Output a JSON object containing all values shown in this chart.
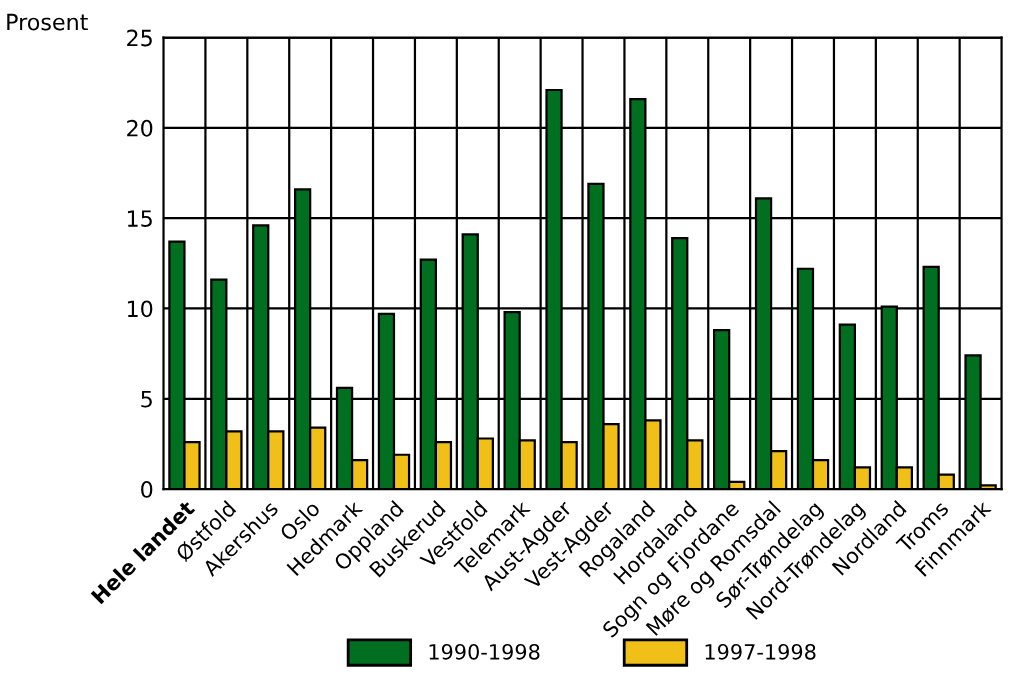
{
  "chart_data": {
    "type": "bar",
    "ylabel": "Prosent",
    "categories": [
      "Hele landet",
      "Østfold",
      "Akershus",
      "Oslo",
      "Hedmark",
      "Oppland",
      "Buskerud",
      "Vestfold",
      "Telemark",
      "Aust-Agder",
      "Vest-Agder",
      "Rogaland",
      "Hordaland",
      "Sogn og Fjordane",
      "Møre og Romsdal",
      "Sør-Trøndelag",
      "Nord-Trøndelag",
      "Nordland",
      "Troms",
      "Finnmark"
    ],
    "series": [
      {
        "name": "1990-1998",
        "color": "#006f1f",
        "values": [
          13.7,
          11.6,
          14.6,
          16.6,
          5.6,
          9.7,
          12.7,
          14.1,
          9.8,
          22.1,
          16.9,
          21.6,
          13.9,
          8.8,
          16.1,
          12.2,
          9.1,
          10.1,
          12.3,
          7.4
        ]
      },
      {
        "name": "1997-1998",
        "color": "#f0c018",
        "values": [
          2.6,
          3.2,
          3.2,
          3.4,
          1.6,
          1.9,
          2.6,
          2.8,
          2.7,
          2.6,
          3.6,
          3.8,
          2.7,
          0.4,
          2.1,
          1.6,
          1.2,
          1.2,
          0.8,
          0.2
        ]
      }
    ],
    "ylim": [
      0,
      25
    ],
    "yticks": [
      0,
      5,
      10,
      15,
      20,
      25
    ],
    "grid": true,
    "legend": "bottom"
  }
}
